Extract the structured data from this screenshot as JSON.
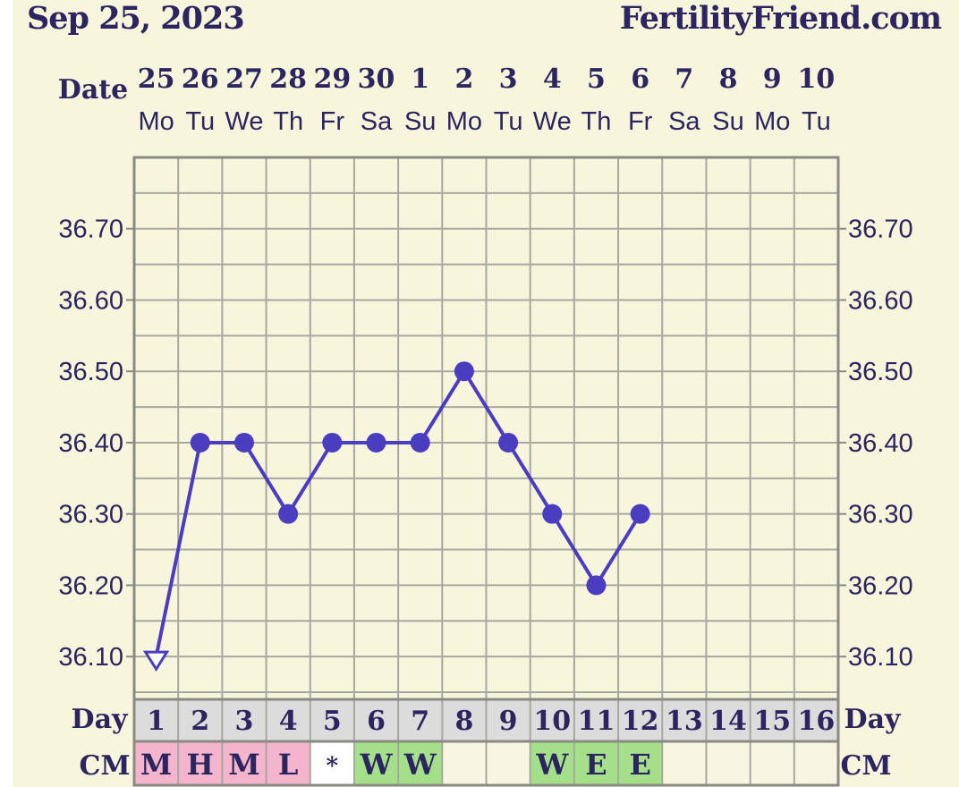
{
  "header": {
    "date": "Sep 25, 2023",
    "site": "FertilityFriend.com"
  },
  "labels": {
    "date_row": "Date",
    "day_row_left": "Day",
    "day_row_right": "Day",
    "cm_row_left": "CM",
    "cm_row_right": "CM"
  },
  "colors": {
    "line": "#4b3dbf",
    "grid": "#a8a8a0",
    "frame": "#8a8a84",
    "text": "#2c2560",
    "cm_pink": "#f4b4cc",
    "cm_green": "#a4e08a",
    "cm_white": "#ffffff",
    "cm_blank": "#f8f5e2",
    "day_bg": "#dcdcdc"
  },
  "chart_data": {
    "type": "line",
    "x": [
      "25",
      "26",
      "27",
      "28",
      "29",
      "30",
      "1",
      "2",
      "3",
      "4",
      "5",
      "6",
      "7",
      "8",
      "9",
      "10"
    ],
    "weekdays": [
      "Mo",
      "Tu",
      "We",
      "Th",
      "Fr",
      "Sa",
      "Su",
      "Mo",
      "Tu",
      "We",
      "Th",
      "Fr",
      "Sa",
      "Su",
      "Mo",
      "Tu"
    ],
    "cycle_days": [
      "1",
      "2",
      "3",
      "4",
      "5",
      "6",
      "7",
      "8",
      "9",
      "10",
      "11",
      "12",
      "13",
      "14",
      "15",
      "16"
    ],
    "y_ticks": [
      "36.70",
      "36.60",
      "36.50",
      "36.40",
      "36.30",
      "36.20",
      "36.10"
    ],
    "ylim": [
      36.04,
      36.8
    ],
    "series": [
      {
        "values": [
          36.1,
          36.4,
          36.4,
          36.3,
          36.4,
          36.4,
          36.4,
          36.5,
          36.4,
          36.3,
          36.2,
          36.3,
          null,
          null,
          null,
          null
        ],
        "first_point_marker": "open-triangle"
      }
    ],
    "cervical_mucus": [
      "M",
      "H",
      "M",
      "L",
      "*",
      "W",
      "W",
      "",
      "",
      "W",
      "E",
      "E",
      "",
      "",
      "",
      ""
    ],
    "cervical_mucus_colors": [
      "pink",
      "pink",
      "pink",
      "pink",
      "white",
      "green",
      "green",
      "blank",
      "blank",
      "green",
      "green",
      "green",
      "blank",
      "blank",
      "blank",
      "blank"
    ],
    "grid": true
  }
}
